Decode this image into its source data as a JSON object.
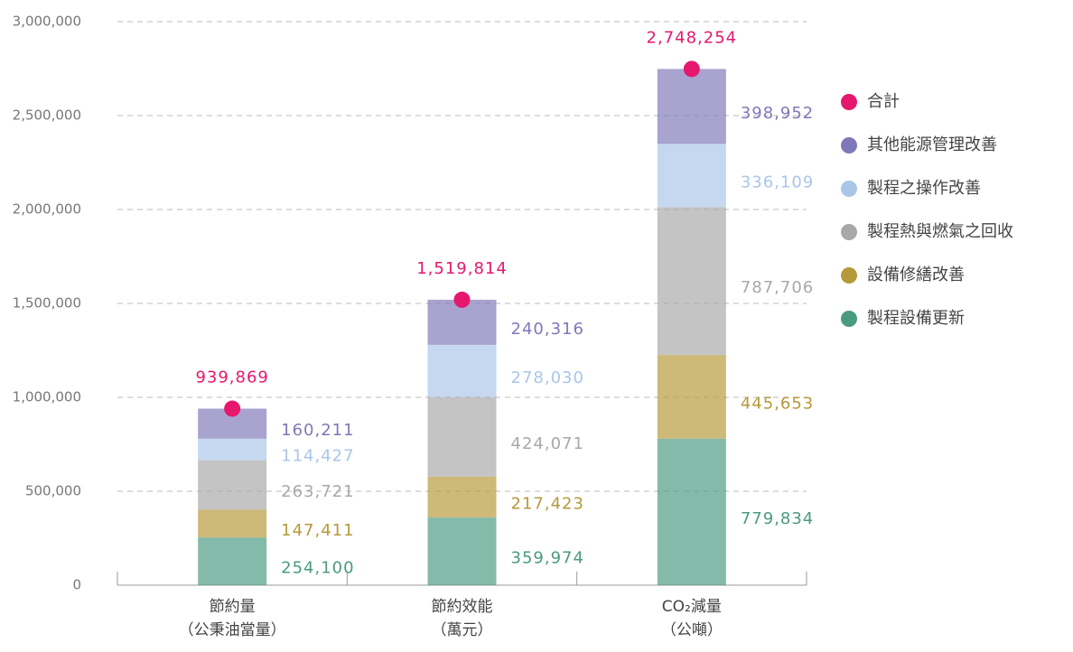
{
  "chart_data": {
    "type": "stacked_bar",
    "categories": [
      [
        "節約量",
        "（公秉油當量）"
      ],
      [
        "節約效能",
        "（萬元）"
      ],
      [
        "CO₂減量",
        "（公噸）"
      ]
    ],
    "series": [
      {
        "name": "製程設備更新",
        "color": "#4a9a80",
        "values": [
          254100,
          359974,
          779834
        ],
        "value_labels": [
          "254,100",
          "359,974",
          "779,834"
        ]
      },
      {
        "name": "設備修繕改善",
        "color": "#b59a3a",
        "values": [
          147411,
          217423,
          445653
        ],
        "value_labels": [
          "147,411",
          "217,423",
          "445,653"
        ]
      },
      {
        "name": "製程熱與燃氣之回收",
        "color": "#a8a8a8",
        "values": [
          263721,
          424071,
          787706
        ],
        "value_labels": [
          "263,721",
          "424,071",
          "787,706"
        ]
      },
      {
        "name": "製程之操作改善",
        "color": "#a9c6e8",
        "values": [
          114427,
          278030,
          336109
        ],
        "value_labels": [
          "114,427",
          "278,030",
          "336,109"
        ]
      },
      {
        "name": "其他能源管理改善",
        "color": "#7f78b8",
        "values": [
          160211,
          240316,
          398952
        ],
        "value_labels": [
          "160,211",
          "240,316",
          "398,952"
        ]
      }
    ],
    "total": {
      "name": "合計",
      "color": "#e5186e",
      "values": [
        939869,
        1519814,
        2748254
      ],
      "value_labels": [
        "939,869",
        "1,519,814",
        "2,748,254"
      ]
    },
    "ylim": [
      0,
      3000000
    ],
    "yticks": [
      0,
      {
        "value": 500000,
        "label": "500,000"
      },
      {
        "value": 1000000,
        "label": "1,000,000"
      },
      {
        "value": 1500000,
        "label": "1,500,000"
      },
      {
        "value": 2000000,
        "label": "2,000,000"
      },
      {
        "value": 2500000,
        "label": "2,500,000"
      },
      {
        "value": 3000000,
        "label": "3,000,000"
      }
    ],
    "grid": true,
    "legend": "right"
  }
}
